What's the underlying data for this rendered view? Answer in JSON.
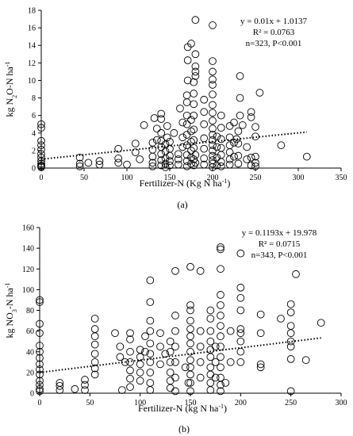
{
  "chart_data": [
    {
      "type": "scatter",
      "panel_label": "(a)",
      "xlabel": "Fertilizer-N (Kg N ha",
      "xlabel_sup": "-1",
      "xlabel_end": ")",
      "ylabel_parts": {
        "a": "kg N",
        "sub": "2",
        "b": "O-N ha",
        "sup": "-1"
      },
      "xlim": [
        0,
        350
      ],
      "ylim": [
        0,
        18
      ],
      "xticks": [
        0,
        50,
        100,
        150,
        200,
        250,
        300,
        350
      ],
      "yticks": [
        0,
        2,
        4,
        6,
        8,
        10,
        12,
        14,
        16,
        18
      ],
      "annotation": [
        "y = 0.01x + 1.0137",
        "R² = 0.0763",
        "n=323, P<0.001"
      ],
      "trendline": {
        "slope": 0.01,
        "intercept": 1.0137,
        "x_range": [
          0,
          310
        ]
      },
      "points": [
        [
          0,
          0.2
        ],
        [
          0,
          0.5
        ],
        [
          0,
          0.8
        ],
        [
          0,
          1.2
        ],
        [
          0,
          1.6
        ],
        [
          0,
          2.1
        ],
        [
          0,
          2.6
        ],
        [
          0,
          3.1
        ],
        [
          0,
          4.6
        ],
        [
          0,
          5.0
        ],
        [
          0,
          0.1
        ],
        [
          0,
          0.3
        ],
        [
          45,
          0.5
        ],
        [
          45,
          1.2
        ],
        [
          45,
          0.2
        ],
        [
          55,
          0.6
        ],
        [
          68,
          0.4
        ],
        [
          68,
          0.8
        ],
        [
          90,
          0.6
        ],
        [
          90,
          1.1
        ],
        [
          90,
          2.2
        ],
        [
          100,
          0.4
        ],
        [
          110,
          1.8
        ],
        [
          110,
          2.8
        ],
        [
          115,
          1.0
        ],
        [
          120,
          4.9
        ],
        [
          130,
          0.2
        ],
        [
          130,
          0.6
        ],
        [
          130,
          1.3
        ],
        [
          130,
          2.1
        ],
        [
          130,
          2.9
        ],
        [
          132,
          5.7
        ],
        [
          135,
          3.2
        ],
        [
          135,
          4.5
        ],
        [
          140,
          0.3
        ],
        [
          140,
          0.9
        ],
        [
          140,
          1.6
        ],
        [
          140,
          2.4
        ],
        [
          140,
          3.1
        ],
        [
          140,
          4.0
        ],
        [
          140,
          5.6
        ],
        [
          140,
          6.2
        ],
        [
          145,
          0.1
        ],
        [
          145,
          0.5
        ],
        [
          145,
          1.1
        ],
        [
          145,
          1.9
        ],
        [
          145,
          2.7
        ],
        [
          147,
          3.5
        ],
        [
          147,
          4.8
        ],
        [
          150,
          0.3
        ],
        [
          150,
          0.8
        ],
        [
          150,
          1.4
        ],
        [
          150,
          2.2
        ],
        [
          150,
          3.0
        ],
        [
          155,
          4.0
        ],
        [
          160,
          0.4
        ],
        [
          160,
          1.0
        ],
        [
          160,
          1.6
        ],
        [
          162,
          6.8
        ],
        [
          165,
          2.4
        ],
        [
          165,
          3.5
        ],
        [
          165,
          5.2
        ],
        [
          170,
          0.2
        ],
        [
          170,
          0.8
        ],
        [
          170,
          1.5
        ],
        [
          170,
          2.6
        ],
        [
          170,
          3.8
        ],
        [
          170,
          5.0
        ],
        [
          170,
          6.0
        ],
        [
          170,
          7.5
        ],
        [
          170,
          8.3
        ],
        [
          171,
          10.0
        ],
        [
          171,
          12.3
        ],
        [
          171,
          13.8
        ],
        [
          175,
          0.5
        ],
        [
          175,
          1.2
        ],
        [
          175,
          2.0
        ],
        [
          175,
          3.0
        ],
        [
          175,
          4.2
        ],
        [
          175,
          5.5
        ],
        [
          175,
          14.2
        ],
        [
          178,
          0.3
        ],
        [
          178,
          1.0
        ],
        [
          178,
          2.3
        ],
        [
          178,
          3.2
        ],
        [
          178,
          4.4
        ],
        [
          178,
          6.0
        ],
        [
          178,
          7.3
        ],
        [
          178,
          8.5
        ],
        [
          178,
          9.8
        ],
        [
          180,
          10.5
        ],
        [
          180,
          11.0
        ],
        [
          180,
          11.6
        ],
        [
          180,
          13.0
        ],
        [
          180,
          16.9
        ],
        [
          180,
          0.6
        ],
        [
          180,
          1.5
        ],
        [
          190,
          0.4
        ],
        [
          190,
          1.1
        ],
        [
          190,
          2.2
        ],
        [
          190,
          3.4
        ],
        [
          190,
          5.0
        ],
        [
          190,
          6.4
        ],
        [
          190,
          7.8
        ],
        [
          200,
          0.1
        ],
        [
          200,
          0.5
        ],
        [
          200,
          0.9
        ],
        [
          200,
          1.4
        ],
        [
          200,
          2.0
        ],
        [
          200,
          2.6
        ],
        [
          200,
          3.2
        ],
        [
          200,
          3.8
        ],
        [
          200,
          4.5
        ],
        [
          200,
          5.4
        ],
        [
          200,
          6.3
        ],
        [
          200,
          7.2
        ],
        [
          200,
          8.4
        ],
        [
          200,
          9.5
        ],
        [
          200,
          10.1
        ],
        [
          200,
          11.0
        ],
        [
          200,
          12.2
        ],
        [
          200,
          16.3
        ],
        [
          205,
          0.3
        ],
        [
          205,
          1.2
        ],
        [
          205,
          2.4
        ],
        [
          205,
          3.6
        ],
        [
          210,
          0.2
        ],
        [
          210,
          0.7
        ],
        [
          210,
          1.5
        ],
        [
          210,
          2.3
        ],
        [
          210,
          3.3
        ],
        [
          210,
          4.6
        ],
        [
          210,
          6.0
        ],
        [
          220,
          0.4
        ],
        [
          220,
          1.0
        ],
        [
          220,
          1.8
        ],
        [
          220,
          2.6
        ],
        [
          220,
          3.5
        ],
        [
          220,
          4.8
        ],
        [
          225,
          1.3
        ],
        [
          225,
          2.9
        ],
        [
          225,
          5.2
        ],
        [
          228,
          3.3
        ],
        [
          230,
          0.5
        ],
        [
          230,
          1.4
        ],
        [
          230,
          2.8
        ],
        [
          230,
          4.2
        ],
        [
          232,
          6.0
        ],
        [
          232,
          8.0
        ],
        [
          232,
          10.5
        ],
        [
          235,
          4.9
        ],
        [
          240,
          1.0
        ],
        [
          240,
          2.4
        ],
        [
          245,
          0.3
        ],
        [
          245,
          1.2
        ],
        [
          245,
          5.8
        ],
        [
          245,
          6.4
        ],
        [
          250,
          0.2
        ],
        [
          250,
          0.6
        ],
        [
          250,
          1.3
        ],
        [
          250,
          3.6
        ],
        [
          250,
          4.7
        ],
        [
          255,
          8.6
        ],
        [
          280,
          2.6
        ],
        [
          310,
          1.3
        ]
      ]
    },
    {
      "type": "scatter",
      "panel_label": "(b)",
      "xlabel": "Fertilizer-N (kg N ha",
      "xlabel_sup": "-1",
      "xlabel_end": ")",
      "ylabel_parts": {
        "a": "kg NO",
        "sub": "3",
        "b": "-N ha",
        "sup": "-1"
      },
      "xlim": [
        0,
        300
      ],
      "ylim": [
        0,
        160
      ],
      "xticks": [
        0,
        50,
        100,
        150,
        200,
        250,
        300
      ],
      "yticks": [
        0,
        20,
        40,
        60,
        80,
        100,
        120,
        140,
        160
      ],
      "annotation": [
        "y = 0.1193x + 19.978",
        "R² = 0.0715",
        "n=343, P<0.001"
      ],
      "trendline": {
        "slope": 0.1193,
        "intercept": 19.978,
        "x_range": [
          0,
          280
        ]
      },
      "points": [
        [
          0,
          90
        ],
        [
          0,
          88
        ],
        [
          0,
          67
        ],
        [
          0,
          58
        ],
        [
          0,
          46
        ],
        [
          0,
          40
        ],
        [
          0,
          34
        ],
        [
          0,
          28
        ],
        [
          0,
          23
        ],
        [
          0,
          18
        ],
        [
          0,
          12
        ],
        [
          0,
          8
        ],
        [
          0,
          4
        ],
        [
          0,
          2
        ],
        [
          20,
          3
        ],
        [
          20,
          7
        ],
        [
          20,
          10
        ],
        [
          35,
          4
        ],
        [
          45,
          3
        ],
        [
          45,
          8
        ],
        [
          45,
          13
        ],
        [
          55,
          72
        ],
        [
          55,
          62
        ],
        [
          55,
          55
        ],
        [
          55,
          47
        ],
        [
          55,
          38
        ],
        [
          55,
          30
        ],
        [
          55,
          24
        ],
        [
          55,
          18
        ],
        [
          75,
          58
        ],
        [
          80,
          45
        ],
        [
          80,
          35
        ],
        [
          82,
          3
        ],
        [
          85,
          30
        ],
        [
          90,
          58
        ],
        [
          90,
          52
        ],
        [
          90,
          40
        ],
        [
          90,
          30
        ],
        [
          90,
          22
        ],
        [
          90,
          14
        ],
        [
          90,
          6
        ],
        [
          100,
          42
        ],
        [
          100,
          35
        ],
        [
          100,
          28
        ],
        [
          100,
          20
        ],
        [
          100,
          12
        ],
        [
          105,
          55
        ],
        [
          105,
          40
        ],
        [
          110,
          109
        ],
        [
          110,
          88
        ],
        [
          110,
          70
        ],
        [
          110,
          60
        ],
        [
          110,
          48
        ],
        [
          110,
          38
        ],
        [
          110,
          30
        ],
        [
          110,
          20
        ],
        [
          110,
          10
        ],
        [
          110,
          3
        ],
        [
          120,
          58
        ],
        [
          120,
          45
        ],
        [
          120,
          28
        ],
        [
          125,
          38
        ],
        [
          130,
          50
        ],
        [
          130,
          40
        ],
        [
          130,
          30
        ],
        [
          130,
          20
        ],
        [
          130,
          12
        ],
        [
          130,
          5
        ],
        [
          135,
          118
        ],
        [
          135,
          75
        ],
        [
          135,
          60
        ],
        [
          135,
          45
        ],
        [
          135,
          30
        ],
        [
          135,
          15
        ],
        [
          135,
          2
        ],
        [
          145,
          25
        ],
        [
          148,
          10
        ],
        [
          150,
          122
        ],
        [
          150,
          85
        ],
        [
          150,
          80
        ],
        [
          150,
          70
        ],
        [
          150,
          62
        ],
        [
          150,
          55
        ],
        [
          150,
          48
        ],
        [
          150,
          40
        ],
        [
          150,
          32
        ],
        [
          150,
          25
        ],
        [
          150,
          18
        ],
        [
          150,
          10
        ],
        [
          150,
          2
        ],
        [
          160,
          118
        ],
        [
          160,
          60
        ],
        [
          160,
          45
        ],
        [
          160,
          30
        ],
        [
          160,
          15
        ],
        [
          170,
          80
        ],
        [
          170,
          72
        ],
        [
          170,
          60
        ],
        [
          170,
          50
        ],
        [
          170,
          42
        ],
        [
          170,
          35
        ],
        [
          170,
          25
        ],
        [
          170,
          18
        ],
        [
          170,
          10
        ],
        [
          170,
          3
        ],
        [
          175,
          45
        ],
        [
          175,
          30
        ],
        [
          175,
          15
        ],
        [
          180,
          141
        ],
        [
          180,
          139
        ],
        [
          180,
          120
        ],
        [
          180,
          95
        ],
        [
          180,
          85
        ],
        [
          180,
          75
        ],
        [
          180,
          65
        ],
        [
          180,
          55
        ],
        [
          180,
          45
        ],
        [
          180,
          35
        ],
        [
          180,
          25
        ],
        [
          180,
          15
        ],
        [
          180,
          8
        ],
        [
          180,
          2
        ],
        [
          185,
          10
        ],
        [
          190,
          60
        ],
        [
          190,
          30
        ],
        [
          200,
          135
        ],
        [
          200,
          102
        ],
        [
          200,
          92
        ],
        [
          200,
          80
        ],
        [
          200,
          62
        ],
        [
          200,
          58
        ],
        [
          200,
          50
        ],
        [
          200,
          40
        ],
        [
          200,
          30
        ],
        [
          220,
          76
        ],
        [
          220,
          58
        ],
        [
          220,
          28
        ],
        [
          220,
          25
        ],
        [
          240,
          72
        ],
        [
          250,
          86
        ],
        [
          250,
          78
        ],
        [
          250,
          65
        ],
        [
          250,
          58
        ],
        [
          250,
          50
        ],
        [
          250,
          45
        ],
        [
          250,
          33
        ],
        [
          250,
          2
        ],
        [
          255,
          115
        ],
        [
          265,
          32
        ],
        [
          280,
          68
        ]
      ]
    }
  ]
}
